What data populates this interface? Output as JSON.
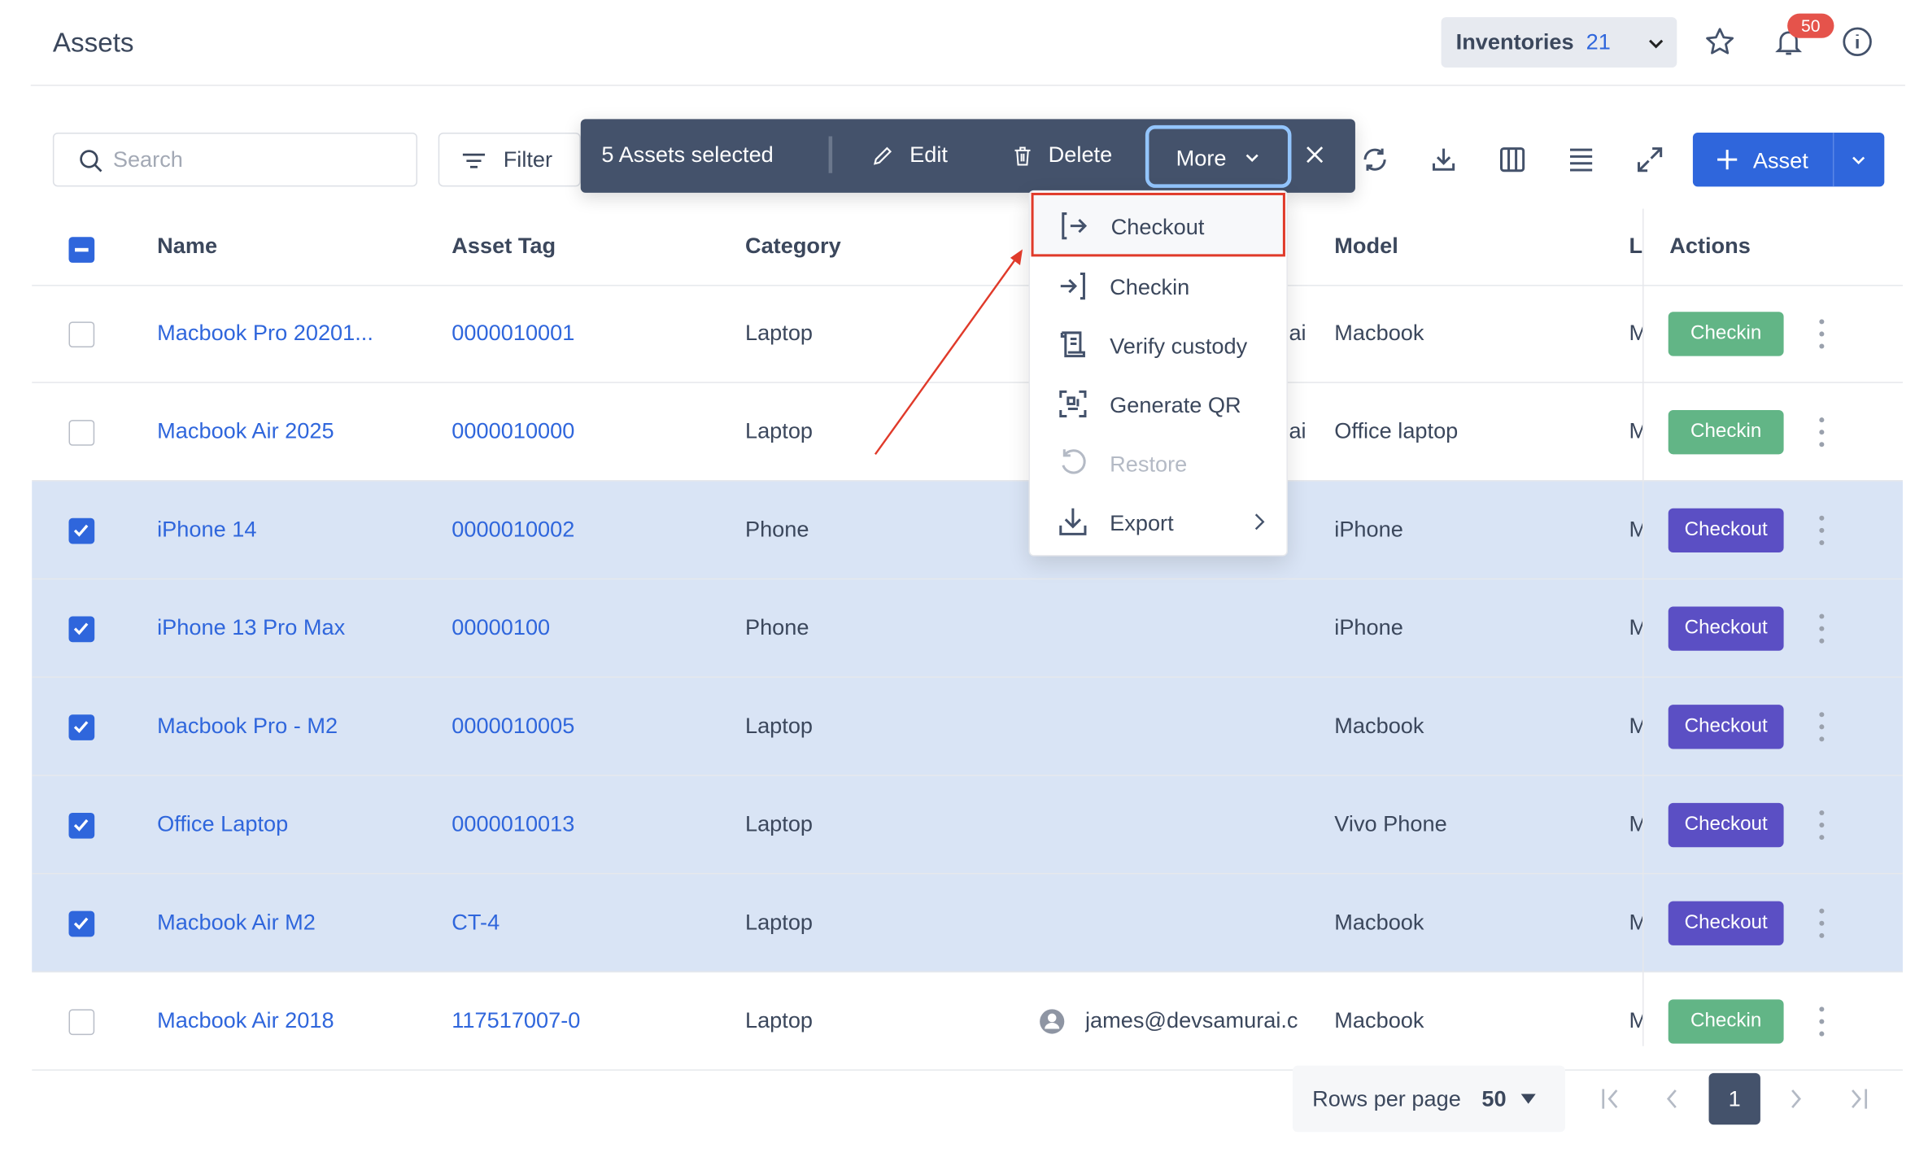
{
  "header": {
    "title": "Assets",
    "inventories_label": "Inventories",
    "inventories_count": "21",
    "notification_count": "50"
  },
  "toolbar": {
    "search_placeholder": "Search",
    "filter_label": "Filter",
    "selected_label": "5 Assets selected",
    "edit_label": "Edit",
    "delete_label": "Delete",
    "more_label": "More",
    "add_asset_label": "Asset"
  },
  "more_menu": {
    "items": [
      {
        "label": "Checkout",
        "icon": "checkout-icon",
        "highlighted": true
      },
      {
        "label": "Checkin",
        "icon": "checkin-icon"
      },
      {
        "label": "Verify custody",
        "icon": "verify-custody-icon"
      },
      {
        "label": "Generate QR",
        "icon": "qr-icon"
      },
      {
        "label": "Restore",
        "icon": "restore-icon",
        "disabled": true
      },
      {
        "label": "Export",
        "icon": "export-icon",
        "submenu": true
      }
    ]
  },
  "table": {
    "columns": [
      "Name",
      "Asset Tag",
      "Category",
      "Model",
      "L",
      "Actions"
    ],
    "rows": [
      {
        "selected": false,
        "name": "Macbook Pro 20201...",
        "tag": "0000010001",
        "category": "Laptop",
        "assignee": "ai",
        "model": "Macbook",
        "last": "M",
        "action": "Checkin"
      },
      {
        "selected": false,
        "name": "Macbook Air 2025",
        "tag": "0000010000",
        "category": "Laptop",
        "assignee": "ai",
        "model": "Office laptop",
        "last": "M",
        "action": "Checkin"
      },
      {
        "selected": true,
        "name": "iPhone 14",
        "tag": "0000010002",
        "category": "Phone",
        "assignee": "",
        "model": "iPhone",
        "last": "M",
        "action": "Checkout"
      },
      {
        "selected": true,
        "name": "iPhone 13 Pro Max",
        "tag": "00000100",
        "category": "Phone",
        "assignee": "",
        "model": "iPhone",
        "last": "M",
        "action": "Checkout"
      },
      {
        "selected": true,
        "name": "Macbook Pro - M2",
        "tag": "0000010005",
        "category": "Laptop",
        "assignee": "",
        "model": "Macbook",
        "last": "M",
        "action": "Checkout"
      },
      {
        "selected": true,
        "name": "Office Laptop",
        "tag": "0000010013",
        "category": "Laptop",
        "assignee": "",
        "model": "Vivo Phone",
        "last": "M",
        "action": "Checkout"
      },
      {
        "selected": true,
        "name": "Macbook Air M2",
        "tag": "CT-4",
        "category": "Laptop",
        "assignee": "",
        "model": "Macbook",
        "last": "M",
        "action": "Checkout"
      },
      {
        "selected": false,
        "name": "Macbook Air 2018",
        "tag": "117517007-0",
        "category": "Laptop",
        "assignee": "james@devsamurai.c",
        "model": "Macbook",
        "last": "M",
        "action": "Checkin"
      }
    ]
  },
  "pagination": {
    "rows_per_page_label": "Rows per page",
    "rows_per_page": "50",
    "current_page": "1"
  },
  "colors": {
    "primary": "#2f66dc",
    "bulk_bar": "#44526b",
    "checkin": "#62b586",
    "checkout": "#5b4fc4",
    "selected_row": "#d9e4f5",
    "highlight_border": "#e03a2a"
  }
}
